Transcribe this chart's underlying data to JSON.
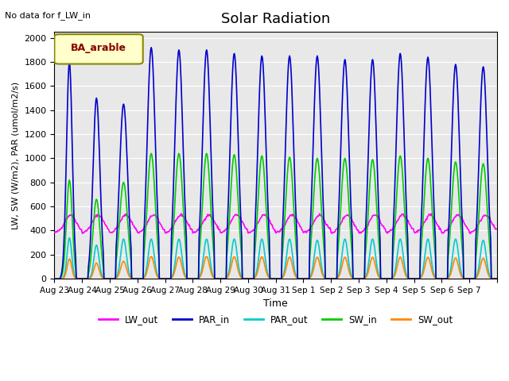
{
  "title": "Solar Radiation",
  "subtitle": "No data for f_LW_in",
  "xlabel": "Time",
  "ylabel": "LW, SW (W/m2), PAR (umol/m2/s)",
  "legend_label": "BA_arable",
  "bg_color": "#e8e8e8",
  "lines": {
    "LW_out": {
      "color": "#ff00ff",
      "lw": 1.2
    },
    "PAR_in": {
      "color": "#0000cc",
      "lw": 1.2
    },
    "PAR_out": {
      "color": "#00cccc",
      "lw": 1.2
    },
    "SW_in": {
      "color": "#00cc00",
      "lw": 1.2
    },
    "SW_out": {
      "color": "#ff8800",
      "lw": 1.2
    }
  },
  "ylim": [
    0,
    2050
  ],
  "yticks": [
    0,
    200,
    400,
    600,
    800,
    1000,
    1200,
    1400,
    1600,
    1800,
    2000
  ],
  "n_days": 16,
  "hours_per_day": 24,
  "dt_hours": 0.5,
  "LW_out_base": 380,
  "LW_out_day_amp": 150,
  "PAR_in_peaks": [
    1800,
    1500,
    1450,
    1920,
    1900,
    1900,
    1870,
    1850,
    1850,
    1850,
    1820,
    1820,
    1870,
    1840,
    1780,
    1760
  ],
  "PAR_out_peaks": [
    340,
    280,
    330,
    330,
    330,
    330,
    330,
    330,
    330,
    320,
    330,
    330,
    330,
    330,
    330,
    320
  ],
  "SW_in_peaks": [
    820,
    660,
    800,
    1040,
    1040,
    1040,
    1030,
    1020,
    1010,
    1000,
    1000,
    990,
    1020,
    1000,
    970,
    955
  ],
  "SW_out_peaks": [
    165,
    130,
    145,
    185,
    180,
    185,
    182,
    182,
    180,
    178,
    178,
    178,
    180,
    178,
    172,
    170
  ],
  "tick_labels": [
    "Aug 23",
    "Aug 24",
    "Aug 25",
    "Aug 26",
    "Aug 27",
    "Aug 28",
    "Aug 29",
    "Aug 30",
    "Aug 31",
    "Sep 1",
    "Sep 2",
    "Sep 3",
    "Sep 4",
    "Sep 5",
    "Sep 6",
    "Sep 7",
    ""
  ]
}
